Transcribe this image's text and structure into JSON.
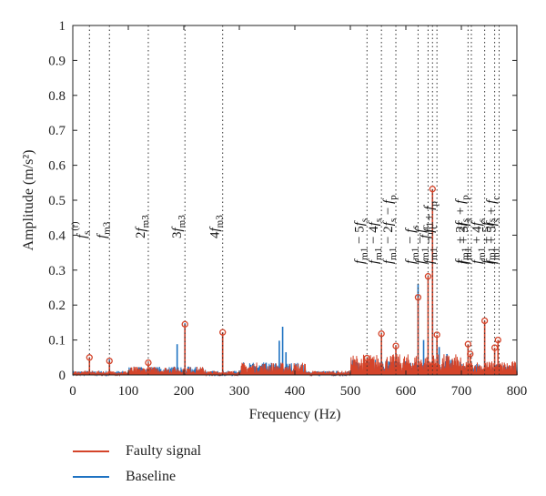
{
  "chart_data": {
    "type": "line",
    "xlabel": "Frequency (Hz)",
    "ylabel": "Amplitude (m/s²)",
    "xlim": [
      0,
      800
    ],
    "ylim": [
      0,
      1
    ],
    "xticks": [
      0,
      100,
      200,
      300,
      400,
      500,
      600,
      700,
      800
    ],
    "yticks": [
      0,
      0.1,
      0.2,
      0.3,
      0.4,
      0.5,
      0.6,
      0.7,
      0.8,
      0.9,
      1
    ],
    "ytick_labels": [
      "0",
      "0.1",
      "0.2",
      "0.3",
      "0.4",
      "0.5",
      "0.6",
      "0.7",
      "0.8",
      "0.9",
      "1"
    ],
    "grid": false,
    "legend_position": "bottom-left, below plot",
    "series": [
      {
        "name": "Faulty signal",
        "color": "#d4442a",
        "peaks": [
          {
            "x": 30,
            "y": 0.05
          },
          {
            "x": 66,
            "y": 0.04
          },
          {
            "x": 136,
            "y": 0.035
          },
          {
            "x": 202,
            "y": 0.145
          },
          {
            "x": 270,
            "y": 0.122
          },
          {
            "x": 530,
            "y": 0.048
          },
          {
            "x": 556,
            "y": 0.118
          },
          {
            "x": 582,
            "y": 0.083
          },
          {
            "x": 622,
            "y": 0.222
          },
          {
            "x": 640,
            "y": 0.282
          },
          {
            "x": 648,
            "y": 0.532
          },
          {
            "x": 656,
            "y": 0.115
          },
          {
            "x": 712,
            "y": 0.088
          },
          {
            "x": 716,
            "y": 0.06
          },
          {
            "x": 742,
            "y": 0.155
          },
          {
            "x": 760,
            "y": 0.078
          },
          {
            "x": 766,
            "y": 0.1
          }
        ]
      },
      {
        "name": "Baseline",
        "color": "#1f73c2",
        "peaks": [
          {
            "x": 66,
            "y": 0.045
          },
          {
            "x": 188,
            "y": 0.088
          },
          {
            "x": 202,
            "y": 0.148
          },
          {
            "x": 270,
            "y": 0.12
          },
          {
            "x": 372,
            "y": 0.098
          },
          {
            "x": 378,
            "y": 0.138
          },
          {
            "x": 384,
            "y": 0.065
          },
          {
            "x": 528,
            "y": 0.03
          },
          {
            "x": 556,
            "y": 0.07
          },
          {
            "x": 622,
            "y": 0.26
          },
          {
            "x": 632,
            "y": 0.1
          },
          {
            "x": 648,
            "y": 0.2
          },
          {
            "x": 660,
            "y": 0.08
          },
          {
            "x": 674,
            "y": 0.06
          },
          {
            "x": 742,
            "y": 0.06
          }
        ]
      }
    ],
    "annotations": [
      {
        "x": 30,
        "segments": [
          [
            "f",
            "it"
          ],
          [
            "s",
            "sub"
          ],
          [
            "(r)",
            "sup"
          ]
        ]
      },
      {
        "x": 66,
        "segments": [
          [
            "f",
            "it"
          ],
          [
            "m3",
            "sub"
          ]
        ]
      },
      {
        "x": 136,
        "segments": [
          [
            "2",
            ""
          ],
          [
            "f",
            "it"
          ],
          [
            "m3",
            "sub"
          ]
        ]
      },
      {
        "x": 202,
        "segments": [
          [
            "3",
            ""
          ],
          [
            "f",
            "it"
          ],
          [
            "m3",
            "sub"
          ]
        ]
      },
      {
        "x": 270,
        "segments": [
          [
            "4",
            ""
          ],
          [
            "f",
            "it"
          ],
          [
            "m3",
            "sub"
          ]
        ]
      },
      {
        "x": 530,
        "segments": [
          [
            "f",
            "it"
          ],
          [
            "m1",
            "sub"
          ],
          [
            " − 5",
            ""
          ],
          [
            "f",
            "it"
          ],
          [
            "s",
            "sub"
          ]
        ]
      },
      {
        "x": 556,
        "segments": [
          [
            "f",
            "it"
          ],
          [
            "m1",
            "sub"
          ],
          [
            " − 4",
            ""
          ],
          [
            "f",
            "it"
          ],
          [
            "s",
            "sub"
          ]
        ]
      },
      {
        "x": 582,
        "segments": [
          [
            "f",
            "it"
          ],
          [
            "m1",
            "sub"
          ],
          [
            " − 2",
            ""
          ],
          [
            "f",
            "it"
          ],
          [
            "s",
            "sub"
          ],
          [
            " − ",
            ""
          ],
          [
            "f",
            "it"
          ],
          [
            "p",
            "sub"
          ]
        ]
      },
      {
        "x": 622,
        "segments": [
          [
            "f",
            "it"
          ],
          [
            "m1",
            "sub"
          ],
          [
            " − ",
            ""
          ],
          [
            "f",
            "it"
          ],
          [
            "s",
            "sub"
          ]
        ]
      },
      {
        "x": 640,
        "segments": [
          [
            "f",
            "it"
          ],
          [
            "m1",
            "sub"
          ],
          [
            " − ",
            ""
          ],
          [
            "f",
            "it"
          ],
          [
            "c",
            "sub"
          ]
        ]
      },
      {
        "x": 648,
        "segments": [
          [
            "f",
            "it"
          ],
          [
            "m1",
            "sub"
          ]
        ]
      },
      {
        "x": 656,
        "segments": [
          [
            "f",
            "it"
          ],
          [
            "m1",
            "sub"
          ],
          [
            " − ",
            ""
          ],
          [
            "f",
            "it"
          ],
          [
            "c",
            "sub"
          ],
          [
            " + ",
            ""
          ],
          [
            "f",
            "it"
          ],
          [
            "p",
            "sub"
          ]
        ]
      },
      {
        "x": 712,
        "segments": [
          [
            "f",
            "it"
          ],
          [
            "m1",
            "sub"
          ],
          [
            " + 2",
            ""
          ],
          [
            "f",
            "it"
          ],
          [
            "s",
            "sub"
          ],
          [
            " + ",
            ""
          ],
          [
            "f",
            "it"
          ],
          [
            "p",
            "sub"
          ]
        ]
      },
      {
        "x": 718,
        "segments": [
          [
            "f",
            "it"
          ],
          [
            "m1",
            "sub"
          ],
          [
            " + 3",
            ""
          ],
          [
            "f",
            "it"
          ],
          [
            "s",
            "sub"
          ]
        ]
      },
      {
        "x": 742,
        "segments": [
          [
            "f",
            "it"
          ],
          [
            "m1",
            "sub"
          ],
          [
            " + 4",
            ""
          ],
          [
            "f",
            "it"
          ],
          [
            "s",
            "sub"
          ]
        ]
      },
      {
        "x": 760,
        "segments": [
          [
            "f",
            "it"
          ],
          [
            "m1",
            "sub"
          ],
          [
            " + 5",
            ""
          ],
          [
            "f",
            "it"
          ],
          [
            "s",
            "sub"
          ]
        ]
      },
      {
        "x": 768,
        "segments": [
          [
            "f",
            "it"
          ],
          [
            "m1",
            "sub"
          ],
          [
            " + 5",
            ""
          ],
          [
            "f",
            "it"
          ],
          [
            "s",
            "sub"
          ],
          [
            " + ",
            ""
          ],
          [
            "f",
            "it"
          ],
          [
            "c",
            "sub"
          ]
        ]
      }
    ]
  }
}
